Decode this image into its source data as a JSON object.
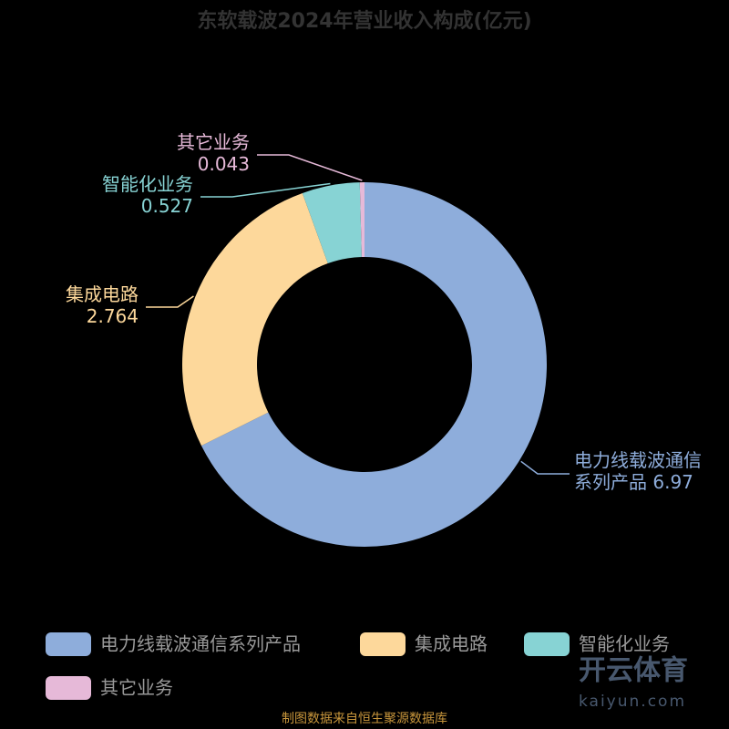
{
  "chart_data": {
    "type": "donut",
    "title": "东软载波2024年营业收入构成(亿元)",
    "categories": [
      "电力线载波通信系列产品",
      "集成电路",
      "智能化业务",
      "其它业务"
    ],
    "values": [
      6.97,
      2.764,
      0.527,
      0.043
    ],
    "colors": [
      "#8eaddb",
      "#fdd89b",
      "#87d3d4",
      "#e6b9d8"
    ],
    "legend": "bottom"
  },
  "source": "制图数据来自恒生聚源数据库",
  "watermark": {
    "brand": "开云体育",
    "site": "kaiyun.com"
  }
}
